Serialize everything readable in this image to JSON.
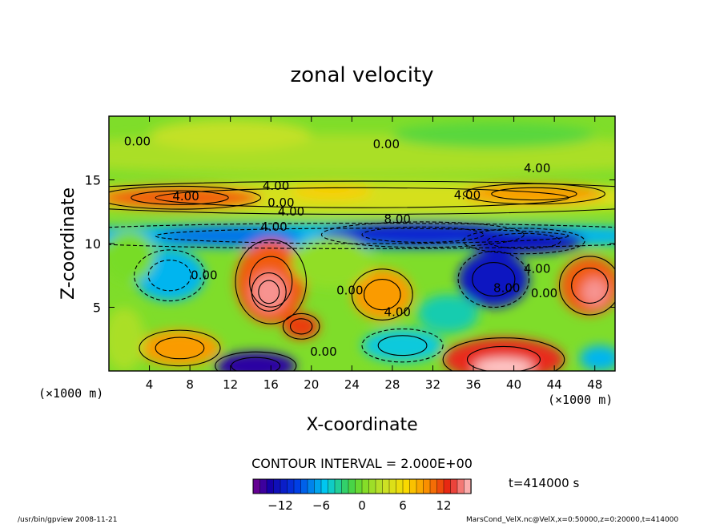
{
  "chart_data": {
    "type": "heatmap",
    "title": "zonal velocity",
    "xlabel": "X-coordinate",
    "ylabel": "Z-coordinate",
    "x_unit_label": "(×1000 m)",
    "z_unit_label": "(×1000 m)",
    "xlim": [
      0,
      50
    ],
    "ylim": [
      0,
      20
    ],
    "x_ticks": [
      4,
      8,
      12,
      16,
      20,
      24,
      28,
      32,
      36,
      40,
      44,
      48
    ],
    "y_ticks": [
      5,
      10,
      15
    ],
    "contour_interval_text": "CONTOUR INTERVAL = 2.000E+00",
    "time_label": "t=414000 s",
    "colorbar": {
      "min": -16,
      "max": 16,
      "ticks": [
        -12,
        -6,
        0,
        6,
        12
      ]
    },
    "contour_labels": [
      {
        "text": "0.00",
        "x": 2.8,
        "z": 17.7
      },
      {
        "text": "0.00",
        "x": 27.4,
        "z": 17.5
      },
      {
        "text": "4.00",
        "x": 42.3,
        "z": 15.6
      },
      {
        "text": "4.00",
        "x": 7.6,
        "z": 13.4
      },
      {
        "text": "4.00",
        "x": 16.5,
        "z": 14.2
      },
      {
        "text": "0.00",
        "x": 17.0,
        "z": 12.9
      },
      {
        "text": "4.00",
        "x": 18.0,
        "z": 12.2
      },
      {
        "text": "4.00",
        "x": 16.3,
        "z": 11.0
      },
      {
        "text": "4.00",
        "x": 35.4,
        "z": 13.5
      },
      {
        "text": "8.00",
        "x": 28.5,
        "z": 11.6
      },
      {
        "text": "0.00",
        "x": 9.4,
        "z": 7.2
      },
      {
        "text": "0.00",
        "x": 23.8,
        "z": 6.0
      },
      {
        "text": "8.00",
        "x": 39.3,
        "z": 6.2
      },
      {
        "text": "4.00",
        "x": 42.3,
        "z": 7.7
      },
      {
        "text": "0.00",
        "x": 43.0,
        "z": 5.8
      },
      {
        "text": "4.00",
        "x": 28.5,
        "z": 4.3
      },
      {
        "text": "0.00",
        "x": 21.2,
        "z": 1.2
      }
    ]
  },
  "footer": {
    "program": "/usr/bin/gpview   2008-11-21",
    "file": "MarsCond_VelX.nc@VelX,x=0:50000,z=0:20000,t=414000"
  }
}
